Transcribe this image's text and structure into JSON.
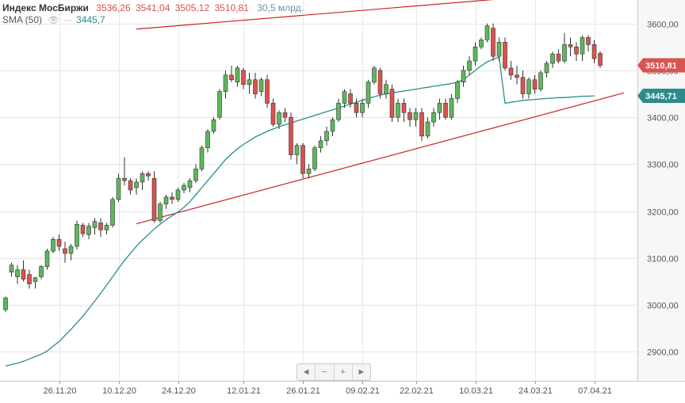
{
  "legend": {
    "title": "Индекс МосБиржи",
    "open": "3536,26",
    "high": "3541,04",
    "low": "3505,12",
    "close": "3510,81",
    "volume": "30,5 млрд.",
    "sma_label": "SMA (50)",
    "sma_value": "3445,7"
  },
  "price_badges": {
    "close": "3510,81",
    "sma": "3445,71"
  },
  "navigation": {
    "prev_icon": "◄",
    "zoom_out_icon": "−",
    "zoom_in_icon": "+",
    "next_icon": "►"
  },
  "colors": {
    "up": "#5cb85c",
    "down": "#d9534f",
    "sma": "#2a8c8c",
    "trendline": "#cc2222",
    "grid": "#e6e6e6",
    "close_badge": "#d9534f",
    "sma_badge": "#2a8c8c"
  },
  "chart_data": {
    "type": "candlestick",
    "title": "Индекс МосБиржи",
    "ylim": [
      2840,
      3650
    ],
    "y_ticks": [
      2900,
      3000,
      3100,
      3200,
      3300,
      3400,
      3500,
      3600
    ],
    "y_tick_labels": [
      "2900,00",
      "3000,00",
      "3100,00",
      "3200,00",
      "3300,00",
      "3400,00",
      "3500,00",
      "3600,00"
    ],
    "x_tick_labels": [
      {
        "label": "26.11.20",
        "index": 9
      },
      {
        "label": "10.12.20",
        "index": 19
      },
      {
        "label": "24.12.20",
        "index": 29
      },
      {
        "label": "12.01.21",
        "index": 40
      },
      {
        "label": "26.01.21",
        "index": 50
      },
      {
        "label": "09.02.21",
        "index": 60
      },
      {
        "label": "22.02.21",
        "index": 69
      },
      {
        "label": "10.03.21",
        "index": 79
      },
      {
        "label": "24.03.21",
        "index": 89
      },
      {
        "label": "07.04.21",
        "index": 99
      }
    ],
    "ohlc": [
      [
        2990,
        3018,
        2985,
        3015
      ],
      [
        3070,
        3090,
        3060,
        3085
      ],
      [
        3060,
        3085,
        3045,
        3075
      ],
      [
        3075,
        3095,
        3050,
        3055
      ],
      [
        3065,
        3075,
        3035,
        3045
      ],
      [
        3050,
        3060,
        3035,
        3058
      ],
      [
        3060,
        3085,
        3055,
        3082
      ],
      [
        3082,
        3120,
        3075,
        3115
      ],
      [
        3115,
        3145,
        3110,
        3140
      ],
      [
        3140,
        3150,
        3115,
        3125
      ],
      [
        3120,
        3135,
        3090,
        3110
      ],
      [
        3110,
        3130,
        3095,
        3125
      ],
      [
        3125,
        3180,
        3118,
        3172
      ],
      [
        3170,
        3175,
        3145,
        3152
      ],
      [
        3150,
        3175,
        3140,
        3168
      ],
      [
        3165,
        3185,
        3150,
        3178
      ],
      [
        3175,
        3185,
        3145,
        3160
      ],
      [
        3160,
        3175,
        3150,
        3170
      ],
      [
        3170,
        3230,
        3165,
        3225
      ],
      [
        3225,
        3280,
        3220,
        3270
      ],
      [
        3270,
        3315,
        3255,
        3265
      ],
      [
        3265,
        3270,
        3235,
        3245
      ],
      [
        3250,
        3270,
        3235,
        3262
      ],
      [
        3262,
        3285,
        3245,
        3280
      ],
      [
        3280,
        3285,
        3265,
        3275
      ],
      [
        3270,
        3285,
        3175,
        3180
      ],
      [
        3180,
        3220,
        3175,
        3215
      ],
      [
        3215,
        3235,
        3205,
        3230
      ],
      [
        3230,
        3240,
        3215,
        3225
      ],
      [
        3225,
        3250,
        3220,
        3245
      ],
      [
        3245,
        3260,
        3238,
        3255
      ],
      [
        3250,
        3270,
        3240,
        3265
      ],
      [
        3265,
        3300,
        3260,
        3290
      ],
      [
        3290,
        3340,
        3285,
        3335
      ],
      [
        3335,
        3375,
        3325,
        3370
      ],
      [
        3370,
        3400,
        3365,
        3395
      ],
      [
        3400,
        3460,
        3395,
        3455
      ],
      [
        3455,
        3500,
        3440,
        3490
      ],
      [
        3490,
        3510,
        3475,
        3480
      ],
      [
        3475,
        3510,
        3465,
        3505
      ],
      [
        3500,
        3505,
        3460,
        3470
      ],
      [
        3470,
        3495,
        3450,
        3480
      ],
      [
        3480,
        3495,
        3440,
        3450
      ],
      [
        3455,
        3485,
        3445,
        3480
      ],
      [
        3480,
        3490,
        3420,
        3430
      ],
      [
        3430,
        3440,
        3380,
        3385
      ],
      [
        3385,
        3415,
        3375,
        3410
      ],
      [
        3410,
        3420,
        3390,
        3400
      ],
      [
        3400,
        3410,
        3310,
        3320
      ],
      [
        3320,
        3345,
        3300,
        3340
      ],
      [
        3340,
        3345,
        3270,
        3280
      ],
      [
        3280,
        3300,
        3270,
        3290
      ],
      [
        3290,
        3340,
        3285,
        3335
      ],
      [
        3335,
        3360,
        3325,
        3350
      ],
      [
        3350,
        3380,
        3340,
        3370
      ],
      [
        3370,
        3400,
        3360,
        3395
      ],
      [
        3395,
        3440,
        3390,
        3430
      ],
      [
        3430,
        3460,
        3420,
        3455
      ],
      [
        3450,
        3460,
        3420,
        3430
      ],
      [
        3430,
        3440,
        3400,
        3410
      ],
      [
        3410,
        3440,
        3400,
        3430
      ],
      [
        3430,
        3480,
        3420,
        3475
      ],
      [
        3475,
        3510,
        3470,
        3505
      ],
      [
        3500,
        3505,
        3440,
        3450
      ],
      [
        3450,
        3480,
        3440,
        3470
      ],
      [
        3460,
        3470,
        3390,
        3400
      ],
      [
        3400,
        3440,
        3390,
        3430
      ],
      [
        3430,
        3440,
        3390,
        3410
      ],
      [
        3410,
        3420,
        3380,
        3395
      ],
      [
        3395,
        3420,
        3380,
        3410
      ],
      [
        3410,
        3420,
        3350,
        3360
      ],
      [
        3360,
        3400,
        3355,
        3390
      ],
      [
        3390,
        3420,
        3380,
        3410
      ],
      [
        3410,
        3440,
        3395,
        3430
      ],
      [
        3430,
        3440,
        3395,
        3400
      ],
      [
        3400,
        3450,
        3395,
        3440
      ],
      [
        3440,
        3480,
        3430,
        3475
      ],
      [
        3475,
        3510,
        3465,
        3500
      ],
      [
        3500,
        3530,
        3490,
        3520
      ],
      [
        3520,
        3560,
        3510,
        3550
      ],
      [
        3550,
        3570,
        3545,
        3565
      ],
      [
        3565,
        3600,
        3560,
        3595
      ],
      [
        3590,
        3600,
        3520,
        3530
      ],
      [
        3530,
        3570,
        3520,
        3560
      ],
      [
        3560,
        3570,
        3500,
        3505
      ],
      [
        3505,
        3520,
        3480,
        3490
      ],
      [
        3490,
        3510,
        3470,
        3485
      ],
      [
        3485,
        3500,
        3440,
        3450
      ],
      [
        3450,
        3485,
        3440,
        3480
      ],
      [
        3480,
        3490,
        3450,
        3460
      ],
      [
        3460,
        3500,
        3455,
        3495
      ],
      [
        3495,
        3520,
        3485,
        3515
      ],
      [
        3515,
        3540,
        3505,
        3535
      ],
      [
        3535,
        3545,
        3515,
        3520
      ],
      [
        3520,
        3580,
        3515,
        3555
      ],
      [
        3555,
        3570,
        3530,
        3550
      ],
      [
        3550,
        3560,
        3520,
        3535
      ],
      [
        3535,
        3575,
        3520,
        3570
      ],
      [
        3570,
        3575,
        3540,
        3555
      ],
      [
        3555,
        3565,
        3515,
        3525
      ],
      [
        3536.26,
        3541.04,
        3505.12,
        3510.81
      ]
    ],
    "sma_50": [
      2870,
      2873,
      2876,
      2880,
      2885,
      2890,
      2895,
      2902,
      2912,
      2922,
      2935,
      2948,
      2962,
      2976,
      2992,
      3008,
      3025,
      3042,
      3060,
      3078,
      3095,
      3110,
      3125,
      3138,
      3150,
      3162,
      3172,
      3182,
      3190,
      3198,
      3208,
      3220,
      3235,
      3250,
      3265,
      3280,
      3295,
      3310,
      3322,
      3333,
      3342,
      3350,
      3358,
      3364,
      3370,
      3375,
      3380,
      3384,
      3388,
      3392,
      3396,
      3400,
      3404,
      3408,
      3412,
      3416,
      3420,
      3424,
      3428,
      3432,
      3436,
      3440,
      3444,
      3447,
      3450,
      3452,
      3454,
      3456,
      3458,
      3460,
      3462,
      3464,
      3466,
      3468,
      3470,
      3472,
      3475,
      3480,
      3490,
      3500,
      3510,
      3518,
      3524,
      3528,
      3430,
      3432,
      3434,
      3436,
      3437,
      3438,
      3439,
      3440,
      3441,
      3442,
      3442,
      3443,
      3444,
      3445,
      3445,
      3445.71
    ],
    "trendlines": [
      {
        "from": {
          "index": 22,
          "value": 3588
        },
        "to": {
          "index": 104,
          "value": 3674
        }
      },
      {
        "from": {
          "index": 22,
          "value": 3173
        },
        "to": {
          "index": 104,
          "value": 3452
        }
      }
    ]
  }
}
